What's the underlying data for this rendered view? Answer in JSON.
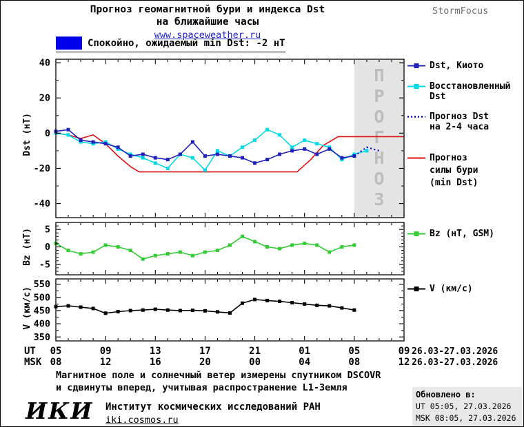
{
  "header": {
    "title_line1": "Прогноз геомагнитной бури и индекса Dst",
    "title_line2": "на ближайшие часы",
    "site_url": "www.spaceweather.ru",
    "brand": "StormFocus"
  },
  "status": {
    "swatch_color": "#0000ee",
    "text": "Спокойно, ожидаемый min Dst: -2 нТ"
  },
  "legend_dst": {
    "items": [
      {
        "lines": [
          "Dst, Киото"
        ],
        "color": "#2020bb",
        "style": "square-line"
      },
      {
        "lines": [
          "Восстановленный",
          "Dst"
        ],
        "color": "#00d9e8",
        "style": "square-line"
      },
      {
        "lines": [
          "Прогноз Dst",
          "на 2-4 часа"
        ],
        "color": "#0000dd",
        "style": "dotted"
      },
      {
        "lines": [
          "Прогноз",
          "силы бури",
          "(min Dst)"
        ],
        "color": "#dd1010",
        "style": "line"
      }
    ]
  },
  "legend_bz": {
    "label": "Bz (нТ, GSM)",
    "color": "#33cc33",
    "style": "square-line"
  },
  "legend_v": {
    "label": "V (км/с)",
    "color": "#000000",
    "style": "square-line"
  },
  "xaxis": {
    "ut_label": "UT",
    "msk_label": "MSK",
    "tick_hours": [
      5,
      9,
      13,
      17,
      21,
      25,
      29,
      33
    ],
    "ut_ticks": [
      "05",
      "09",
      "13",
      "17",
      "21",
      "01",
      "05",
      "09"
    ],
    "msk_ticks": [
      "08",
      "12",
      "16",
      "20",
      "00",
      "04",
      "08",
      "12"
    ],
    "ut_date": "26.03-27.03.2026",
    "msk_date": "26.03-27.03.2026"
  },
  "chart_data": [
    {
      "type": "line",
      "ylabel": "Dst (нТ)",
      "ylim": [
        -48,
        42
      ],
      "yticks": [
        40,
        20,
        0,
        -20,
        -40
      ],
      "yminor": 10,
      "xlim_hours_ut": [
        5,
        33
      ],
      "forecast_region": {
        "x_start": 29,
        "x_end": 33,
        "label": "ПРОГНОЗ"
      },
      "series": [
        {
          "name": "Прогноз силы бури (min Dst)",
          "color": "#dd1010",
          "x": [
            5,
            6,
            7,
            8,
            9,
            10,
            11,
            11.7,
            24.4,
            25.5,
            26.5,
            27.7,
            33
          ],
          "y": [
            0,
            -1,
            -3,
            -1,
            -6,
            -13,
            -19,
            -22,
            -22,
            -15,
            -7,
            -2,
            -2
          ]
        },
        {
          "name": "Восстановленный Dst",
          "color": "#00d9e8",
          "marker": "square",
          "x": [
            5,
            6,
            7,
            8,
            9,
            10,
            11,
            12,
            13,
            14,
            15,
            16,
            17,
            18,
            19,
            20,
            21,
            22,
            23,
            24,
            25,
            26,
            27,
            28,
            29,
            30
          ],
          "y": [
            0,
            -1,
            -5,
            -6,
            -5,
            -9,
            -12,
            -14,
            -17,
            -20,
            -12,
            -14,
            -21,
            -10,
            -13,
            -8,
            -4,
            2,
            -1,
            -8,
            -4,
            -6,
            -8,
            -15,
            -12,
            -10
          ]
        },
        {
          "name": "Dst, Киото",
          "color": "#2020bb",
          "marker": "square",
          "x": [
            5,
            6,
            7,
            8,
            9,
            10,
            11,
            12,
            13,
            14,
            15,
            16,
            17,
            18,
            19,
            20,
            21,
            22,
            23,
            24,
            25,
            26,
            27,
            28,
            29
          ],
          "y": [
            1,
            2,
            -4,
            -5,
            -6,
            -8,
            -13,
            -12,
            -14,
            -15,
            -12,
            -5,
            -13,
            -12,
            -13,
            -14,
            -17,
            -15,
            -12,
            -10,
            -9,
            -12,
            -9,
            -14,
            -13
          ]
        },
        {
          "name": "Прогноз Dst на 2-4 часа",
          "color": "#0000dd",
          "dash": "dotted",
          "x": [
            29,
            30,
            31
          ],
          "y": [
            -13,
            -8,
            -10
          ]
        }
      ]
    },
    {
      "type": "line",
      "ylabel": "Bz (нТ)",
      "ylim": [
        -8,
        7
      ],
      "yticks": [
        5,
        0,
        -5
      ],
      "yminor": 1,
      "series": [
        {
          "name": "Bz (нТ, GSM)",
          "color": "#33cc33",
          "marker": "square",
          "x": [
            5,
            6,
            7,
            8,
            9,
            10,
            11,
            12,
            13,
            14,
            15,
            16,
            17,
            18,
            19,
            20,
            21,
            22,
            23,
            24,
            25,
            26,
            27,
            28,
            29
          ],
          "y": [
            1,
            -1,
            -2,
            -1.5,
            0.5,
            0,
            -1,
            -3.5,
            -2.5,
            -2,
            -1.5,
            -2.5,
            -1.5,
            -1,
            0.5,
            3,
            1.5,
            0,
            -0.5,
            0.5,
            1,
            0.5,
            -1.5,
            0,
            0.5
          ]
        }
      ]
    },
    {
      "type": "line",
      "ylabel": "V (км/с)",
      "ylim": [
        335,
        570
      ],
      "yticks": [
        550,
        500,
        450,
        400,
        350
      ],
      "yminor": 25,
      "series": [
        {
          "name": "V (км/с)",
          "color": "#000000",
          "marker": "square",
          "x": [
            5,
            6,
            7,
            8,
            9,
            10,
            11,
            12,
            13,
            14,
            15,
            16,
            17,
            18,
            19,
            20,
            21,
            22,
            23,
            24,
            25,
            26,
            27,
            28,
            29
          ],
          "y": [
            465,
            468,
            463,
            458,
            440,
            446,
            450,
            452,
            455,
            452,
            450,
            451,
            449,
            445,
            441,
            478,
            492,
            488,
            485,
            480,
            475,
            470,
            468,
            460,
            452
          ]
        }
      ]
    }
  ],
  "footer": {
    "note_line1": "Магнитное поле и солнечный ветер измерены спутником DSCOVR",
    "note_line2": "и сдвинуты вперед, учитывая распространение L1-Земля",
    "logo": "ИКИ",
    "institute": "Институт космических исследований РАН",
    "site": "iki.cosmos.ru"
  },
  "updated": {
    "title": "Обновлено в:",
    "ut": "UT  05:05, 27.03.2026",
    "msk": "MSK 08:05, 27.03.2026"
  }
}
